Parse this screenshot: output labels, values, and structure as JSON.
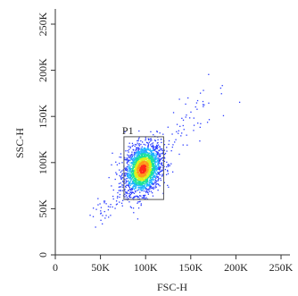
{
  "chart_data": {
    "type": "scatter",
    "subtype": "flow-cytometry-density-dot-plot",
    "title": "",
    "xlabel": "FSC-H",
    "ylabel": "SSC-H",
    "xlim": [
      0,
      250000
    ],
    "ylim": [
      0,
      250000
    ],
    "x_ticks": [
      0,
      50000,
      100000,
      150000,
      200000,
      250000
    ],
    "x_tick_labels": [
      "0",
      "50K",
      "100K",
      "150K",
      "200K",
      "250K"
    ],
    "y_ticks": [
      0,
      50000,
      100000,
      150000,
      200000,
      250000
    ],
    "y_tick_labels": [
      "0",
      "50K",
      "100K",
      "150K",
      "200K",
      "250K"
    ],
    "grid": false,
    "legend": "none",
    "population": {
      "center": [
        97000,
        93000
      ],
      "spread": [
        10000,
        13000
      ],
      "tail_to_low": {
        "from": [
          97000,
          93000
        ],
        "to": [
          45000,
          40000
        ]
      },
      "tail_to_high": {
        "from": [
          97000,
          93000
        ],
        "to": [
          180000,
          178000
        ]
      },
      "density_colors": [
        "#2a3cff",
        "#1fb4ff",
        "#19e39a",
        "#d8f21b",
        "#ff9a1a",
        "#ff2a1a"
      ]
    },
    "gate": {
      "label": "P1",
      "x_range": [
        76000,
        120000
      ],
      "y_range": [
        60000,
        128000
      ],
      "color": "#555555"
    }
  }
}
